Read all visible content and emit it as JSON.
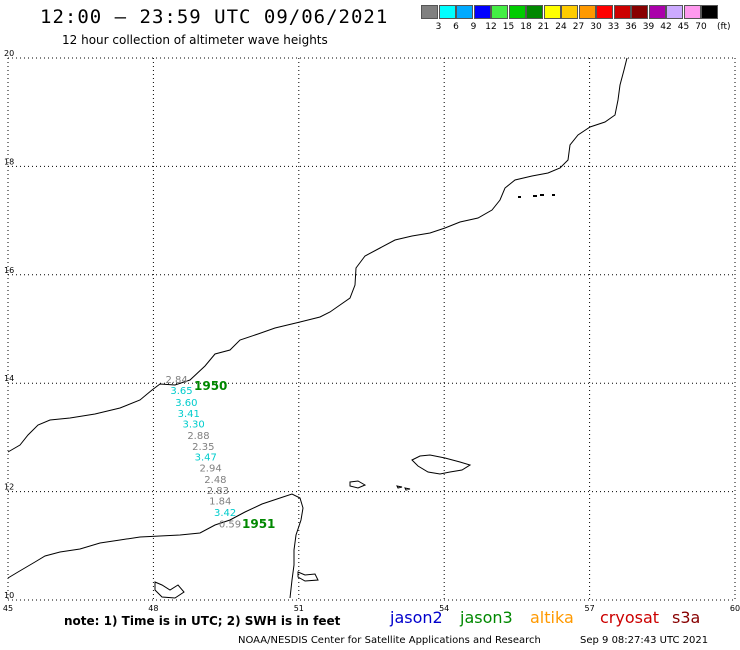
{
  "header": {
    "title": "12:00 – 23:59 UTC 09/06/2021",
    "subtitle": "12 hour collection of altimeter wave heights"
  },
  "colorbar": {
    "unit": "(ft)",
    "items": [
      {
        "label": "3",
        "color": "#808080"
      },
      {
        "label": "6",
        "color": "#00ffff"
      },
      {
        "label": "9",
        "color": "#00aaff"
      },
      {
        "label": "12",
        "color": "#0000ff"
      },
      {
        "label": "15",
        "color": "#44ee44"
      },
      {
        "label": "18",
        "color": "#00cc00"
      },
      {
        "label": "21",
        "color": "#008800"
      },
      {
        "label": "24",
        "color": "#ffff00"
      },
      {
        "label": "27",
        "color": "#ffcc00"
      },
      {
        "label": "30",
        "color": "#ff9900"
      },
      {
        "label": "33",
        "color": "#ff0000"
      },
      {
        "label": "36",
        "color": "#cc0000"
      },
      {
        "label": "39",
        "color": "#880000"
      },
      {
        "label": "42",
        "color": "#aa00aa"
      },
      {
        "label": "45",
        "color": "#ccaaff"
      },
      {
        "label": "70",
        "color": "#ff99ee"
      },
      {
        "label": "",
        "color": "#000000"
      }
    ]
  },
  "axes": {
    "lon_ticks": [
      "45",
      "48",
      "51",
      "54",
      "57",
      "60"
    ],
    "lat_ticks": [
      "20",
      "18",
      "16",
      "14",
      "12",
      "10"
    ]
  },
  "labels": {
    "pass_start": "1950",
    "pass_end": "1951"
  },
  "observations": [
    {
      "value": "2.84",
      "lon": 48.25,
      "lat": 14.0,
      "color": "#808080"
    },
    {
      "value": "3.65",
      "lon": 48.35,
      "lat": 13.8,
      "color": "#00cccc"
    },
    {
      "value": "3.60",
      "lon": 48.45,
      "lat": 13.58,
      "color": "#00cccc"
    },
    {
      "value": "3.41",
      "lon": 48.5,
      "lat": 13.38,
      "color": "#00cccc"
    },
    {
      "value": "3.30",
      "lon": 48.6,
      "lat": 13.18,
      "color": "#00cccc"
    },
    {
      "value": "2.88",
      "lon": 48.7,
      "lat": 12.97,
      "color": "#808080"
    },
    {
      "value": "2.35",
      "lon": 48.8,
      "lat": 12.77,
      "color": "#808080"
    },
    {
      "value": "3.47",
      "lon": 48.85,
      "lat": 12.57,
      "color": "#00cccc"
    },
    {
      "value": "2.94",
      "lon": 48.95,
      "lat": 12.37,
      "color": "#808080"
    },
    {
      "value": "2.48",
      "lon": 49.05,
      "lat": 12.16,
      "color": "#808080"
    },
    {
      "value": "2.83",
      "lon": 49.1,
      "lat": 11.96,
      "color": "#808080"
    },
    {
      "value": "1.84",
      "lon": 49.15,
      "lat": 11.76,
      "color": "#808080"
    },
    {
      "value": "3.42",
      "lon": 49.25,
      "lat": 11.55,
      "color": "#00cccc"
    },
    {
      "value": "0.59",
      "lon": 49.35,
      "lat": 11.34,
      "color": "#808080"
    }
  ],
  "footer": {
    "note": "note: 1) Time is in UTC; 2) SWH is in feet",
    "satellites": [
      {
        "name": "jason2",
        "color": "#0000cc"
      },
      {
        "name": "jason3",
        "color": "#008800"
      },
      {
        "name": "altika",
        "color": "#ff9900"
      },
      {
        "name": "cryosat",
        "color": "#cc0000"
      },
      {
        "name": "s3a",
        "color": "#880000"
      }
    ],
    "credit": "NOAA/NESDIS Center for Satellite Applications and Research",
    "timestamp": "Sep  9 08:27:43 UTC 2021"
  }
}
